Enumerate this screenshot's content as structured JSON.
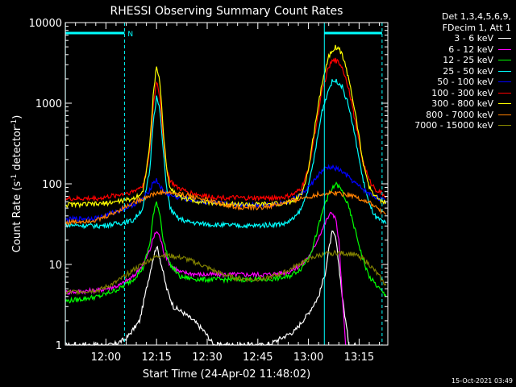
{
  "chart_data": {
    "type": "line",
    "title": "RHESSI Observing Summary Count Rates",
    "xlabel": "Start Time (24-Apr-02 11:48:02)",
    "ylabel_parts": [
      "Count Rate (s",
      "-1",
      " detector",
      "-1",
      ")"
    ],
    "yscale": "log",
    "ylim": [
      1,
      10000
    ],
    "xlim_minutes": [
      -0.03,
      95.5
    ],
    "x_tick_labels": [
      "12:00",
      "12:15",
      "12:30",
      "12:45",
      "13:00",
      "13:15"
    ],
    "x_tick_minutes": [
      12,
      27,
      42,
      57,
      72,
      87
    ],
    "y_tick_labels": [
      "1",
      "10",
      "100",
      "1000",
      "10000"
    ],
    "y_tick_values": [
      1,
      10,
      100,
      1000,
      10000
    ],
    "legend_header": [
      "Det 1,3,4,5,6,9,",
      "FDecim 1, Att 1"
    ],
    "series": [
      {
        "name": "3 - 6 keV",
        "color": "#ffffff",
        "x": [
          0,
          5,
          10,
          14,
          18,
          22,
          24,
          26,
          27,
          28,
          30,
          32,
          35,
          38,
          41,
          44,
          60,
          68,
          72,
          75,
          77,
          78,
          79,
          80,
          81,
          82,
          83,
          84,
          86
        ],
        "y": [
          1,
          1,
          1,
          1,
          1.2,
          2,
          5,
          12,
          17,
          12,
          5,
          3,
          2.5,
          2,
          1.5,
          1,
          1,
          1.5,
          2.5,
          4,
          8,
          15,
          25,
          22,
          10,
          4,
          2,
          1,
          1
        ]
      },
      {
        "name": "6 - 12 keV",
        "color": "#ff00ff",
        "x": [
          0,
          10,
          16,
          20,
          23,
          25,
          26,
          27,
          28,
          29,
          31,
          34,
          40,
          50,
          60,
          66,
          70,
          73,
          75,
          77,
          78,
          79,
          80,
          81,
          82,
          83
        ],
        "y": [
          4.5,
          4.8,
          5.5,
          7,
          10,
          15,
          21,
          26,
          22,
          15,
          10,
          8,
          7.5,
          7.5,
          7.5,
          8,
          10,
          14,
          22,
          33,
          40,
          44,
          38,
          20,
          4,
          1
        ]
      },
      {
        "name": "12 - 25 keV",
        "color": "#00ff00",
        "x": [
          0,
          10,
          16,
          20,
          23,
          25,
          26,
          27,
          28,
          29,
          31,
          34,
          40,
          50,
          60,
          66,
          70,
          73,
          75,
          77,
          79,
          80,
          81,
          82,
          84,
          86,
          88,
          90,
          93,
          95
        ],
        "y": [
          3.5,
          4,
          5,
          6.5,
          9,
          18,
          40,
          60,
          42,
          20,
          10,
          7,
          6.5,
          6.5,
          6.5,
          7,
          9,
          15,
          30,
          60,
          85,
          100,
          92,
          80,
          50,
          25,
          12,
          7,
          5,
          4
        ]
      },
      {
        "name": "25 - 50 keV",
        "color": "#00ffff",
        "x": [
          0,
          10,
          15,
          20,
          23,
          25,
          26,
          27,
          28,
          29,
          30,
          31,
          33,
          36,
          40,
          45,
          55,
          65,
          68,
          70,
          72,
          74,
          76,
          78,
          79,
          80,
          81,
          82,
          84,
          86,
          88,
          90,
          92,
          95
        ],
        "y": [
          31,
          30,
          32,
          35,
          50,
          150,
          600,
          1200,
          800,
          250,
          90,
          50,
          38,
          34,
          32,
          31,
          30,
          32,
          38,
          50,
          90,
          250,
          800,
          1500,
          1850,
          1900,
          1800,
          1600,
          900,
          350,
          120,
          55,
          38,
          32
        ]
      },
      {
        "name": "50 - 100 keV",
        "color": "#0000ff",
        "x": [
          0,
          10,
          15,
          20,
          23,
          25,
          26,
          27,
          28,
          29,
          31,
          34,
          40,
          50,
          60,
          66,
          70,
          73,
          75,
          77,
          78,
          79,
          80,
          81,
          82,
          84,
          86,
          90,
          95
        ],
        "y": [
          36,
          38,
          45,
          55,
          65,
          85,
          105,
          110,
          95,
          80,
          72,
          67,
          60,
          55,
          55,
          60,
          75,
          100,
          130,
          155,
          160,
          158,
          155,
          150,
          140,
          120,
          100,
          75,
          60
        ]
      },
      {
        "name": "100 - 300 keV",
        "color": "#ff0000",
        "x": [
          0,
          10,
          15,
          20,
          23,
          25,
          26,
          27,
          28,
          29,
          30,
          31,
          33,
          36,
          40,
          45,
          55,
          65,
          68,
          70,
          72,
          74,
          76,
          78,
          79,
          80,
          81,
          82,
          84,
          86,
          88,
          90,
          92,
          95
        ],
        "y": [
          65,
          66,
          72,
          80,
          95,
          250,
          900,
          1900,
          1200,
          350,
          160,
          110,
          90,
          80,
          72,
          68,
          66,
          68,
          75,
          90,
          150,
          450,
          1400,
          2800,
          3300,
          3400,
          3200,
          2800,
          1500,
          550,
          200,
          110,
          85,
          70
        ]
      },
      {
        "name": "300 - 800 keV",
        "color": "#ffff00",
        "x": [
          0,
          10,
          15,
          20,
          23,
          25,
          26,
          27,
          28,
          29,
          30,
          31,
          33,
          36,
          40,
          45,
          55,
          65,
          68,
          70,
          72,
          74,
          76,
          78,
          79,
          80,
          81,
          82,
          84,
          86,
          88,
          90,
          92,
          95
        ],
        "y": [
          55,
          56,
          60,
          65,
          80,
          300,
          1200,
          2900,
          1800,
          450,
          150,
          90,
          72,
          65,
          60,
          57,
          55,
          57,
          62,
          75,
          150,
          550,
          1800,
          3800,
          4600,
          5000,
          4700,
          4000,
          2000,
          700,
          200,
          90,
          68,
          58
        ]
      },
      {
        "name": "800 - 7000 keV",
        "color": "#ff8000",
        "x": [
          0,
          10,
          15,
          20,
          25,
          28,
          30,
          35,
          40,
          45,
          50,
          55,
          60,
          65,
          70,
          75,
          80,
          85,
          90,
          95
        ],
        "y": [
          33,
          36,
          45,
          58,
          72,
          78,
          78,
          74,
          66,
          58,
          52,
          50,
          52,
          58,
          66,
          74,
          78,
          72,
          58,
          42
        ]
      },
      {
        "name": "7000 - 15000 keV",
        "color": "#808000",
        "x": [
          0,
          10,
          15,
          20,
          25,
          28,
          30,
          35,
          40,
          45,
          50,
          55,
          60,
          65,
          70,
          75,
          80,
          85,
          88,
          90,
          92,
          95
        ],
        "y": [
          4.5,
          4.8,
          6,
          8.5,
          11.5,
          13,
          13,
          12,
          10,
          8,
          6.8,
          6.5,
          6.8,
          8,
          10.5,
          13,
          14,
          13.5,
          12,
          10,
          8,
          5.5
        ]
      }
    ],
    "attenuator_markers_minutes": [
      0,
      17.5,
      76.7,
      93.8
    ],
    "attenuator_label": "N"
  },
  "footer": {
    "timestamp": "15-Oct-2021 03:49"
  }
}
